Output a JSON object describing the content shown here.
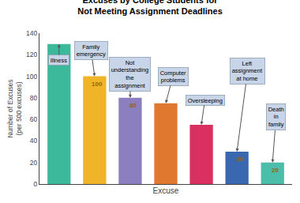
{
  "chart_data": {
    "type": "bar",
    "title": "Excuses by College Students for\nNot Meeting Assignment Deadlines",
    "xlabel": "Excuse",
    "ylabel": "Number of Excuses\n(per 500 excuses)",
    "categories": [
      null,
      null,
      null,
      null,
      null,
      null,
      null
    ],
    "values": [
      130,
      100,
      80,
      75,
      55,
      30,
      20
    ],
    "colors": [
      "#3CB89A",
      "#F0B429",
      "#8B7FBF",
      "#E07830",
      "#D93060",
      "#3A68B0",
      "#4ABEA8"
    ],
    "value_labels": [
      null,
      "100",
      "80",
      null,
      null,
      "30",
      "20"
    ],
    "annotations": [
      "Illness",
      "Family\nemergency",
      "Not\nunderstanding\nthe\nassignment",
      "Computer\nproblems",
      "Oversleeping",
      "Left\nassignment\nat home",
      "Death\nin\nfamily"
    ],
    "ylim": [
      0,
      140
    ],
    "yticks": [
      0,
      20,
      40,
      60,
      80,
      100,
      120,
      140
    ],
    "grid": false,
    "tick_labels": "y"
  }
}
